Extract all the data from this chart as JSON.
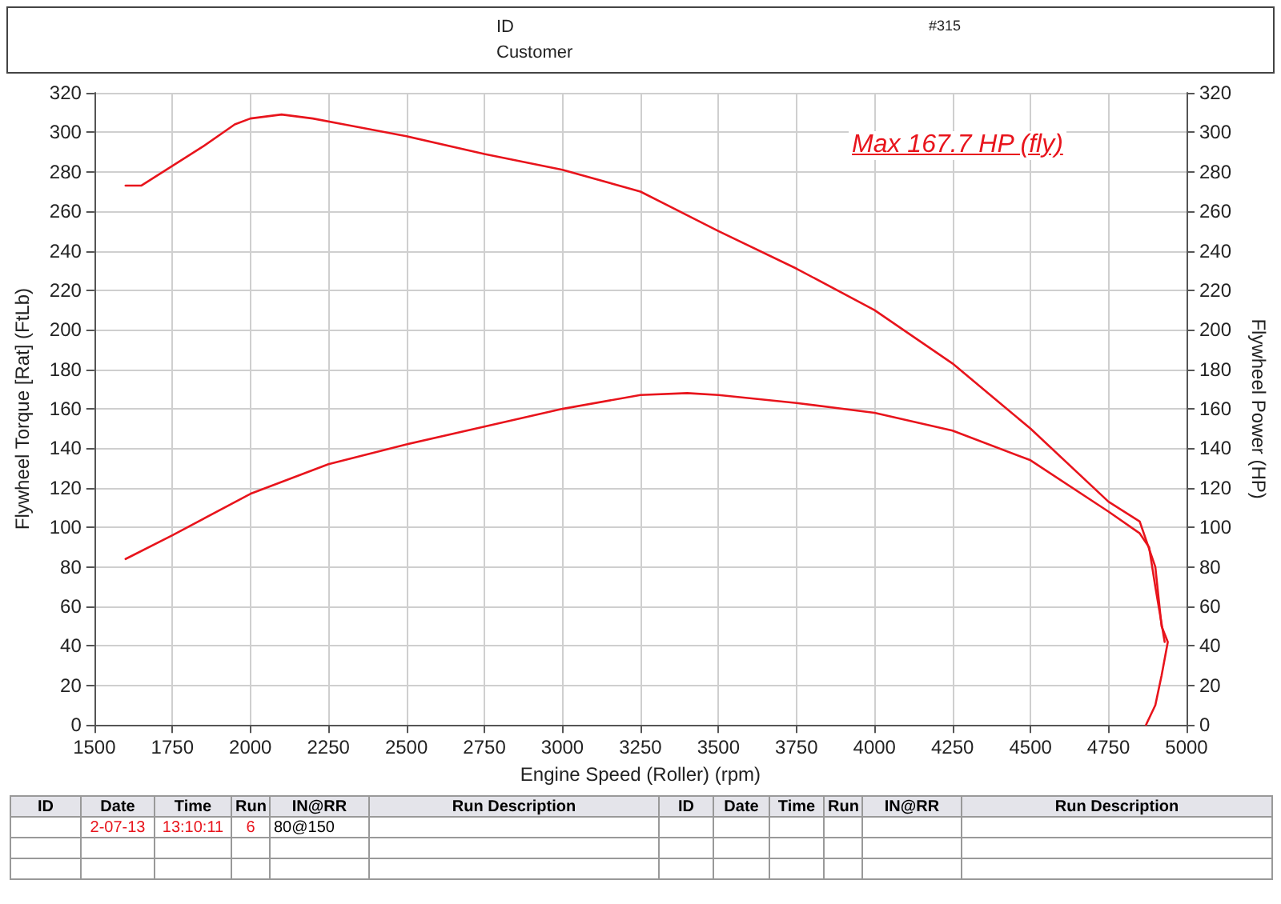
{
  "chart_data": {
    "type": "line",
    "xlabel": "Engine Speed (Roller) (rpm)",
    "ylabel": "Flywheel Torque [Rat] (FtLb)",
    "y2label": "Flywheel Power (HP)",
    "annotations": [
      "ID",
      "Customer",
      "#315",
      "Max 167.7 HP (fly)",
      "ID",
      "Date",
      "Time",
      "Run",
      "IN@RR",
      "Run Description",
      "ID",
      "Date",
      "Time",
      "Run",
      "IN@RR",
      "Run Description",
      "2-07-13",
      "13:10:11",
      "6",
      "80@150"
    ],
    "series": [
      {
        "color": "#e8141c",
        "x": [
          1600,
          1650,
          1750,
          1850,
          1950,
          2000,
          2100,
          2200,
          2300,
          2500,
          2750,
          3000,
          3250,
          3500,
          3750,
          4000,
          4250,
          4500,
          4750,
          4850,
          4900,
          4920,
          4940,
          4920,
          4900,
          4870
        ],
        "values": [
          273,
          273,
          283,
          293,
          304,
          307,
          309,
          307,
          304,
          298,
          289,
          281,
          270,
          250,
          231,
          210,
          183,
          150,
          113,
          103,
          80,
          50,
          42,
          25,
          10,
          0
        ]
      },
      {
        "color": "#e8141c",
        "x": [
          1600,
          1750,
          2000,
          2250,
          2500,
          2750,
          3000,
          3250,
          3400,
          3500,
          3750,
          4000,
          4250,
          4500,
          4750,
          4850,
          4880,
          4900,
          4930
        ],
        "values": [
          84,
          96,
          117,
          132,
          142,
          151,
          160,
          167,
          168,
          167,
          163,
          158,
          149,
          134,
          108,
          97,
          90,
          70,
          42
        ]
      }
    ],
    "xlim": [
      1500,
      5000
    ],
    "xticks": [
      1500,
      1750,
      2000,
      2250,
      2500,
      2750,
      3000,
      3250,
      3500,
      3750,
      4000,
      4250,
      4500,
      4750,
      5000
    ],
    "ylim": [
      0,
      320
    ],
    "yticks": [
      0,
      20,
      40,
      60,
      80,
      100,
      120,
      140,
      160,
      180,
      200,
      220,
      240,
      260,
      280,
      300,
      320
    ],
    "y2lim": [
      0,
      320
    ],
    "y2ticks": [
      0,
      20,
      40,
      60,
      80,
      100,
      120,
      140,
      160,
      180,
      200,
      220,
      240,
      260,
      280,
      300,
      320
    ],
    "grid": true,
    "marker": "none",
    "line_style": "solid"
  }
}
